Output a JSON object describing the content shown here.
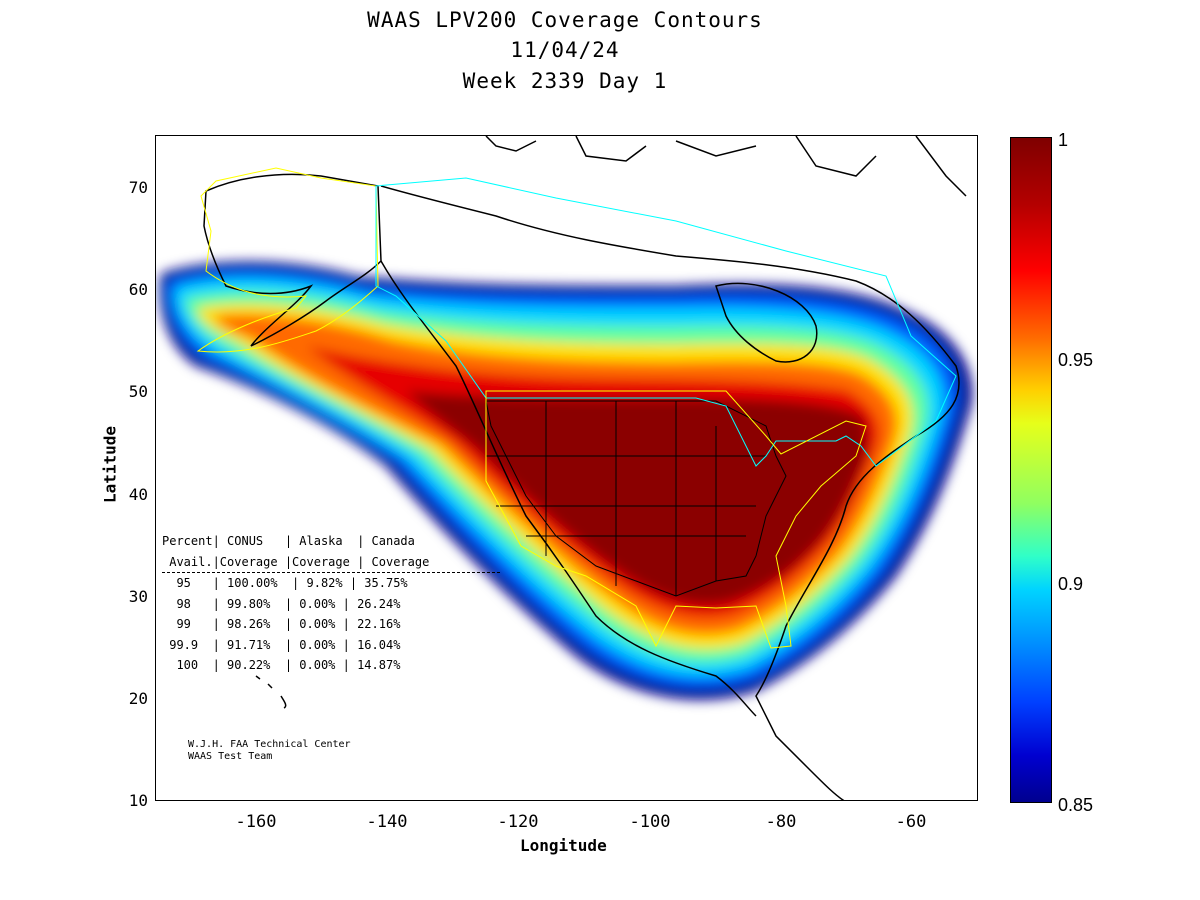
{
  "title": {
    "line1": "WAAS LPV200 Coverage Contours",
    "line2": "11/04/24",
    "line3": "Week 2339 Day 1"
  },
  "axes": {
    "xlabel": "Longitude",
    "ylabel": "Latitude",
    "xlim": [
      -175,
      -50
    ],
    "ylim": [
      10,
      75
    ],
    "x_ticks": [
      "-160",
      "-140",
      "-120",
      "-100",
      "-80",
      "-60"
    ],
    "x_tick_values": [
      -160,
      -140,
      -120,
      -100,
      -80,
      -60
    ],
    "y_ticks": [
      "70",
      "60",
      "50",
      "40",
      "30",
      "20",
      "10"
    ],
    "y_tick_values": [
      70,
      60,
      50,
      40,
      30,
      20,
      10
    ]
  },
  "colorbar": {
    "min": 0.85,
    "max": 1,
    "tick_labels": [
      "1",
      "0.95",
      "0.9",
      "0.85"
    ],
    "tick_values": [
      1,
      0.95,
      0.9,
      0.85
    ],
    "colormap": [
      "#7f0000",
      "#ff0000",
      "#ffd000",
      "#30ffc8",
      "#00d4ff",
      "#0040ff",
      "#00008f"
    ]
  },
  "stats_table": {
    "header1": "Percent| CONUS   | Alaska  | Canada",
    "header2": " Avail.|Coverage |Coverage | Coverage",
    "rows": [
      "  95   | 100.00%  | 9.82% | 35.75%",
      "  98   | 99.80%  | 0.00% | 26.24%",
      "  99   | 98.26%  | 0.00% | 22.16%",
      " 99.9  | 91.71%  | 0.00% | 16.04%",
      "  100  | 90.22%  | 0.00% | 14.87%"
    ]
  },
  "credit": {
    "line1": "W.J.H. FAA Technical Center",
    "line2": "WAAS Test Team"
  },
  "colors": {
    "conus_boundary": "#ffff00",
    "alaska_boundary": "#ffff00",
    "canada_boundary": "#00ffff",
    "coastline": "#000000"
  }
}
